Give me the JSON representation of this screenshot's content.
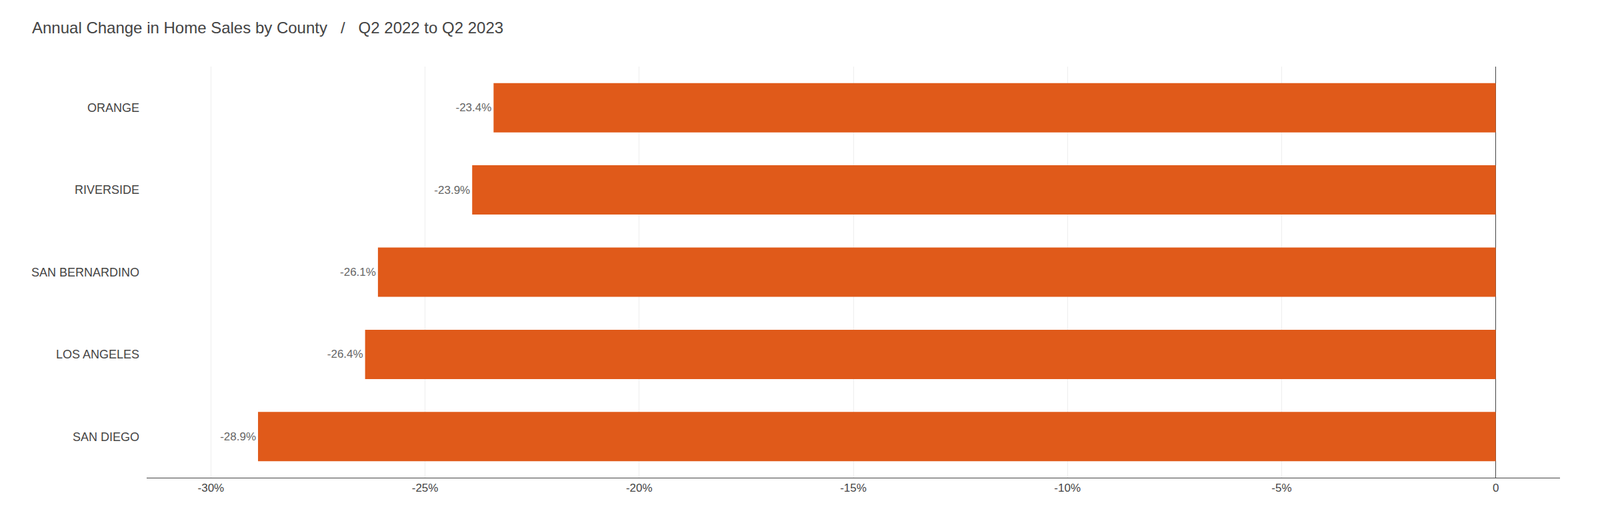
{
  "chart_data": {
    "type": "bar",
    "orientation": "horizontal",
    "title": "Annual Change in Home Sales by County   /   Q2 2022 to Q2 2023",
    "categories": [
      "SAN DIEGO",
      "LOS ANGELES",
      "SAN BERNARDINO",
      "RIVERSIDE",
      "ORANGE"
    ],
    "values": [
      -28.9,
      -26.4,
      -26.1,
      -23.9,
      -23.4
    ],
    "value_labels": [
      "-28.9%",
      "-26.4%",
      "-26.1%",
      "-23.9%",
      "-23.4%"
    ],
    "data_labels": true,
    "color": "#E05A1A",
    "xlim": [
      -31.5,
      1.5
    ],
    "xticks": [
      {
        "value": -30,
        "label": "-30%"
      },
      {
        "value": -25,
        "label": "-25%"
      },
      {
        "value": -20,
        "label": "-20%"
      },
      {
        "value": -15,
        "label": "-15%"
      },
      {
        "value": -10,
        "label": "-10%"
      },
      {
        "value": -5,
        "label": "-5%"
      },
      0
    ],
    "grid": true
  }
}
